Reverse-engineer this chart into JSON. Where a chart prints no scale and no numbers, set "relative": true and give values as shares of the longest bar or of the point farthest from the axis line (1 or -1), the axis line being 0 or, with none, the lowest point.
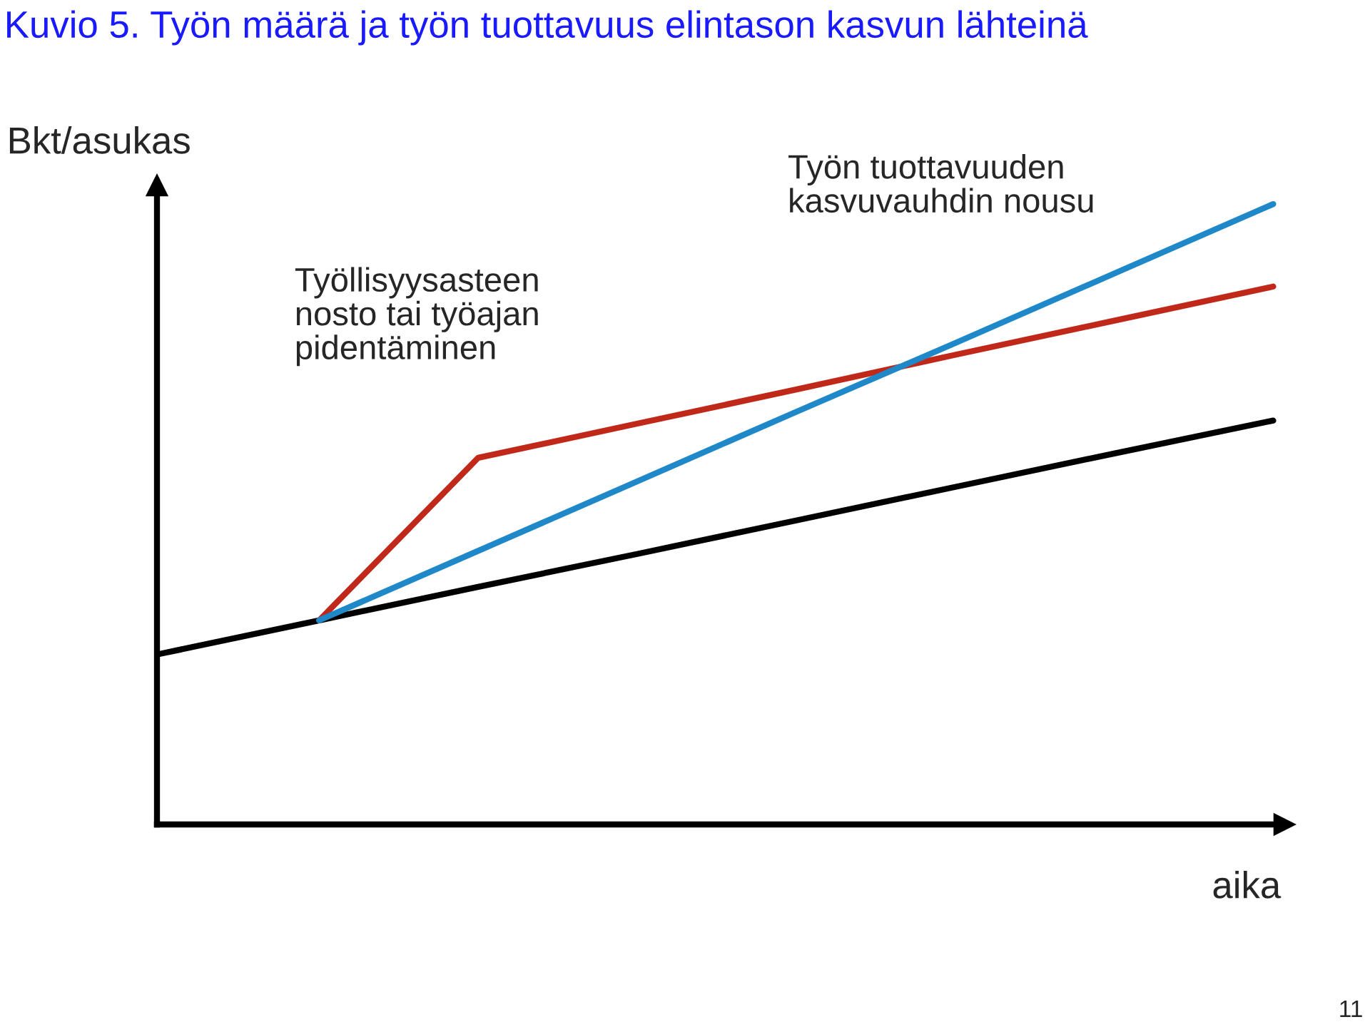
{
  "chart_data": {
    "type": "line",
    "title": "Kuvio 5. Työn määrä ja työn tuottavuus elintason kasvun lähteinä",
    "ylabel": "Bkt/asukas",
    "xlabel": "aika",
    "relative": true,
    "marker": "none",
    "line_style": "solid",
    "categories": [
      null,
      null,
      null,
      null,
      null,
      null,
      null,
      null
    ],
    "series": [
      {
        "color": "#000000",
        "values": [
          0.275,
          0.329,
          0.383,
          0.436,
          0.49,
          0.544,
          0.598,
          0.651
        ]
      },
      {
        "color": "#c0281a",
        "values": [
          null,
          0.329,
          0.591,
          0.646,
          0.701,
          0.757,
          0.812,
          0.867
        ]
      },
      {
        "color": "#1e88c8",
        "values": [
          null,
          0.329,
          0.441,
          0.553,
          0.665,
          0.776,
          0.888,
          1.0
        ]
      }
    ],
    "annotations": [
      "Työllisyysasteen\nnosto tai työajan\npidentäminen",
      "Työn tuottavuuden\nkasvuvauhdin nousu",
      "11"
    ]
  }
}
